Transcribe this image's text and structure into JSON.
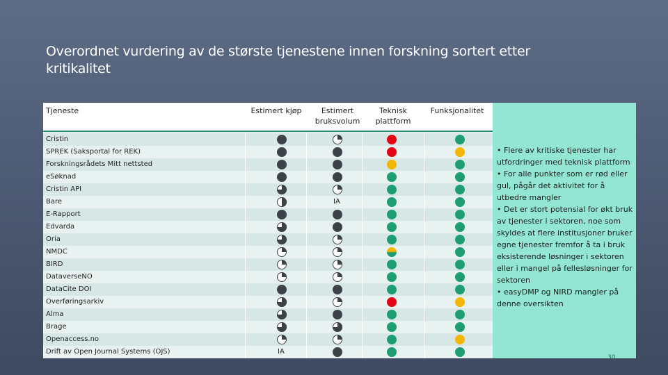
{
  "slide": {
    "title": "Overordnet vurdering av de største tjenestene innen forskning sortert etter kritikalitet",
    "page_number": "30"
  },
  "colors": {
    "dark_dot": "#3d4148",
    "white_dot": "#ffffff",
    "green": "#1e9c72",
    "yellow": "#f2b705",
    "red": "#e30613",
    "yellow_green": "#b8a515"
  },
  "headers": {
    "tjeneste": "Tjeneste",
    "kjop": "Estimert kjøp",
    "bruk_1": "Estimert",
    "bruk_2": "bruksvolum",
    "tek_1": "Teknisk",
    "tek_2": "plattform",
    "funk": "Funksjonalitet"
  },
  "rows": [
    {
      "name": "Cristin",
      "kjop": 1.0,
      "bruk": 0.25,
      "tek": "red",
      "funk": "green"
    },
    {
      "name": "SPREK (Saksportal for REK)",
      "kjop": 1.0,
      "bruk": 1.0,
      "tek": "red",
      "funk": "yellow"
    },
    {
      "name": "Forskningsrådets Mitt nettsted",
      "kjop": 1.0,
      "bruk": 1.0,
      "tek": "yellow",
      "funk": "green"
    },
    {
      "name": "eSøknad",
      "kjop": 1.0,
      "bruk": 1.0,
      "tek": "green",
      "funk": "green"
    },
    {
      "name": "Cristin API",
      "kjop": 0.75,
      "bruk": 0.25,
      "tek": "green",
      "funk": "green"
    },
    {
      "name": "Bare",
      "kjop": 0.5,
      "bruk": "IA",
      "tek": "green",
      "funk": "green"
    },
    {
      "name": "E-Rapport",
      "kjop": 1.0,
      "bruk": 1.0,
      "tek": "green",
      "funk": "green"
    },
    {
      "name": "Edvarda",
      "kjop": 0.75,
      "bruk": 1.0,
      "tek": "green",
      "funk": "green"
    },
    {
      "name": "Oria",
      "kjop": 0.75,
      "bruk": 0.25,
      "tek": "green",
      "funk": "green"
    },
    {
      "name": "NMDC",
      "kjop": 0.25,
      "bruk": 0.25,
      "tek": "yellow-green",
      "funk": "green"
    },
    {
      "name": "BIRD",
      "kjop": 0.25,
      "bruk": 0.25,
      "tek": "green",
      "funk": "green"
    },
    {
      "name": "DataverseNO",
      "kjop": 0.25,
      "bruk": 0.25,
      "tek": "green",
      "funk": "green"
    },
    {
      "name": "DataCite DOI",
      "kjop": 1.0,
      "bruk": 1.0,
      "tek": "green",
      "funk": "green"
    },
    {
      "name": "Overføringsarkiv",
      "kjop": 0.75,
      "bruk": 0.25,
      "tek": "red",
      "funk": "yellow"
    },
    {
      "name": "Alma",
      "kjop": 0.75,
      "bruk": 1.0,
      "tek": "green",
      "funk": "green"
    },
    {
      "name": "Brage",
      "kjop": 0.75,
      "bruk": 0.75,
      "tek": "green",
      "funk": "green"
    },
    {
      "name": "Openaccess.no",
      "kjop": 0.25,
      "bruk": 0.25,
      "tek": "green",
      "funk": "yellow"
    },
    {
      "name": "Drift av Open Journal Systems (OJS)",
      "kjop": "IA",
      "bruk": 1.0,
      "tek": "green",
      "funk": "green"
    }
  ],
  "side_notes": [
    "• Flere av kritiske tjenester har utfordringer med teknisk plattform",
    "• For alle punkter som er rød eller gul, pågår det aktivitet for å utbedre mangler",
    "• Det er stort potensial for økt bruk av tjenester i sektoren, noe som skyldes at flere institusjoner bruker egne tjenester fremfor å ta i bruk eksisterende løsninger i sektoren eller i mangel på fellesløsninger for sektoren",
    "• easyDMP og NIRD mangler på denne oversikten"
  ]
}
